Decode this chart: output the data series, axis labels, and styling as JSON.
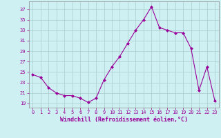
{
  "x": [
    0,
    1,
    2,
    3,
    4,
    5,
    6,
    7,
    8,
    9,
    10,
    11,
    12,
    13,
    14,
    15,
    16,
    17,
    18,
    19,
    20,
    21,
    22,
    23
  ],
  "y": [
    24.5,
    24.0,
    22.0,
    21.0,
    20.5,
    20.5,
    20.0,
    19.2,
    20.0,
    23.5,
    26.0,
    28.0,
    30.5,
    33.0,
    35.0,
    37.5,
    33.5,
    33.0,
    32.5,
    32.5,
    29.5,
    21.5,
    26.0,
    19.5
  ],
  "line_color": "#990099",
  "marker": "D",
  "marker_size": 2,
  "bg_color": "#cff0f2",
  "grid_color": "#aacccc",
  "xlabel": "Windchill (Refroidissement éolien,°C)",
  "xlabel_color": "#990099",
  "tick_color": "#990099",
  "yticks": [
    19,
    21,
    23,
    25,
    27,
    29,
    31,
    33,
    35,
    37
  ],
  "ylim": [
    18.2,
    38.5
  ],
  "xlim": [
    -0.5,
    23.5
  ],
  "xticks": [
    0,
    1,
    2,
    3,
    4,
    5,
    6,
    7,
    8,
    9,
    10,
    11,
    12,
    13,
    14,
    15,
    16,
    17,
    18,
    19,
    20,
    21,
    22,
    23
  ]
}
